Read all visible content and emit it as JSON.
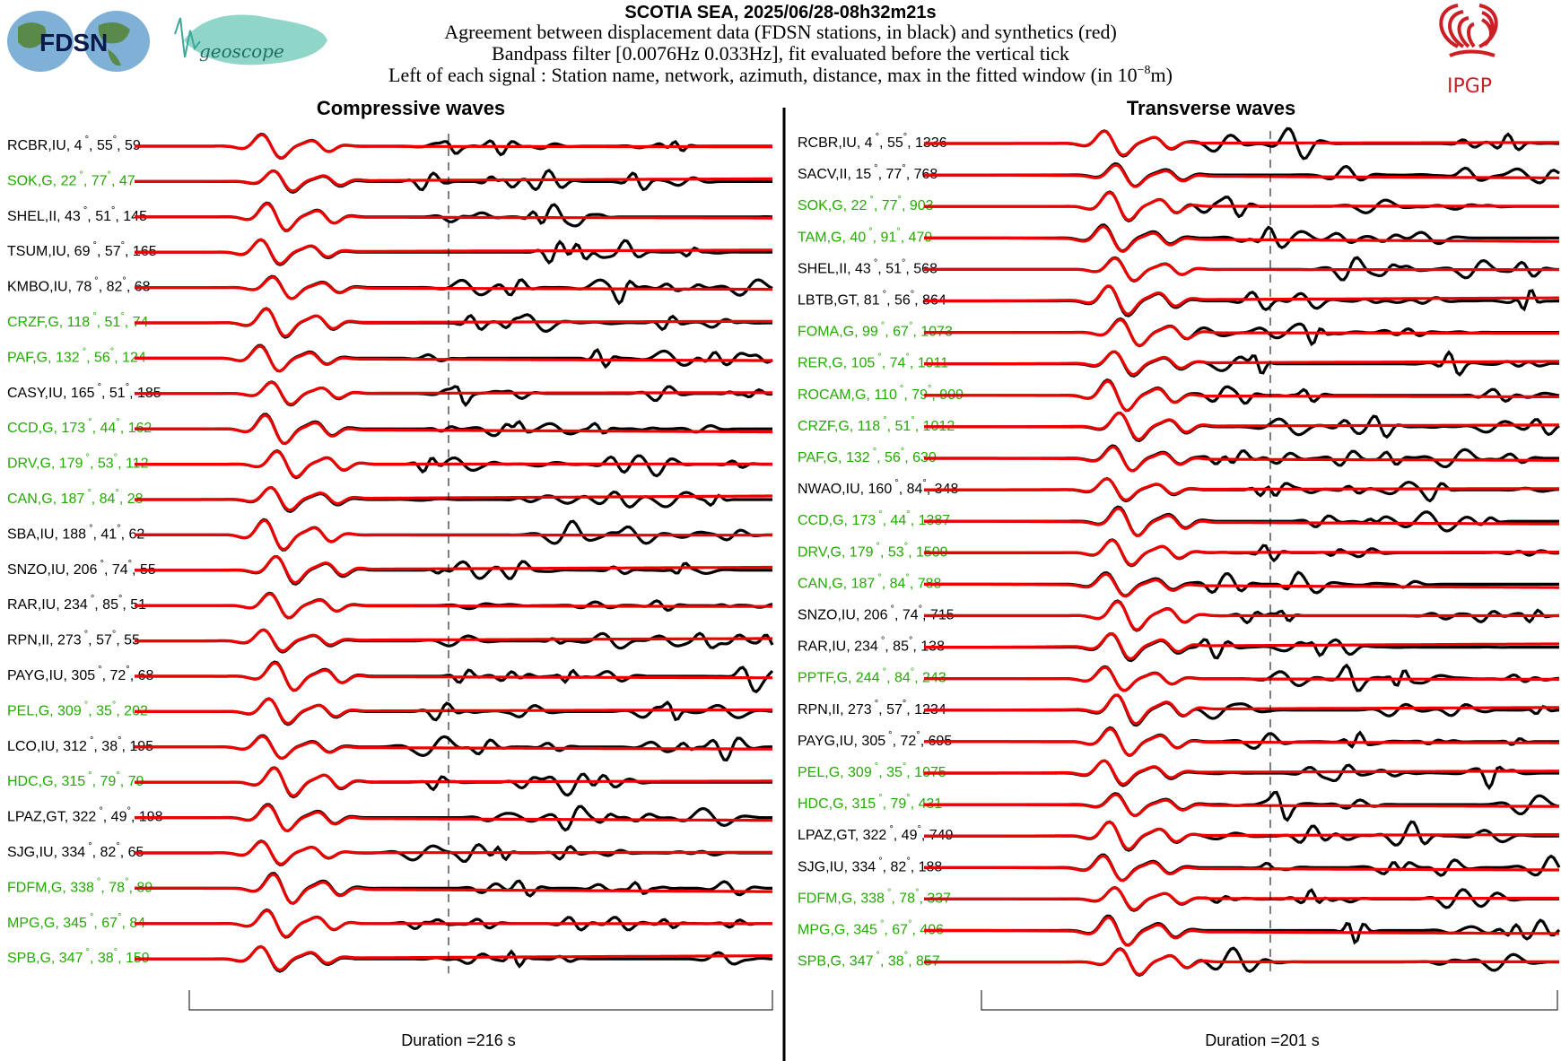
{
  "header": {
    "title": "SCOTIA SEA, 2025/06/28-08h32m21s",
    "line1": "Agreement between displacement data (FDSN stations, in black) and synthetics (red)",
    "line2": "Bandpass filter [0.0076Hz 0.033Hz], fit evaluated before the vertical tick",
    "line3_prefix": "Left of each signal : Station name, network, azimuth, distance, max in the fitted window (in 10",
    "line3_exp": "−8",
    "line3_suffix": "m)"
  },
  "logos": {
    "fdsn": "FDSN",
    "geoscope": "geoscope",
    "ipgp": "IPGP"
  },
  "colors": {
    "data": "#000000",
    "synthetic": "#ee0000",
    "geoscope_label": "#22aa00",
    "other_label": "#000000",
    "ipgp_red": "#cc1f25"
  },
  "chart_data": [
    {
      "type": "line",
      "title": "Compressive waves",
      "duration_label": "Duration =216 s",
      "series_legend": [
        {
          "name": "data",
          "color": "#000000"
        },
        {
          "name": "synthetics",
          "color": "#ee0000"
        }
      ],
      "stations": [
        {
          "label": "RCBR,IU, 4",
          "dist": "55",
          "max": "59",
          "geoscope": false
        },
        {
          "label": "SOK,G, 22",
          "dist": "77",
          "max": "47",
          "geoscope": true
        },
        {
          "label": "SHEL,II, 43",
          "dist": "51",
          "max": "145",
          "geoscope": false
        },
        {
          "label": "TSUM,IU, 69",
          "dist": "57",
          "max": "165",
          "geoscope": false
        },
        {
          "label": "KMBO,IU, 78",
          "dist": "82",
          "max": "68",
          "geoscope": false
        },
        {
          "label": "CRZF,G, 118",
          "dist": "51",
          "max": "74",
          "geoscope": true
        },
        {
          "label": "PAF,G, 132",
          "dist": "56",
          "max": "124",
          "geoscope": true
        },
        {
          "label": "CASY,IU, 165",
          "dist": "51",
          "max": "185",
          "geoscope": false
        },
        {
          "label": "CCD,G, 173",
          "dist": "44",
          "max": "162",
          "geoscope": true
        },
        {
          "label": "DRV,G, 179",
          "dist": "53",
          "max": "112",
          "geoscope": true
        },
        {
          "label": "CAN,G, 187",
          "dist": "84",
          "max": "28",
          "geoscope": true
        },
        {
          "label": "SBA,IU, 188",
          "dist": "41",
          "max": "62",
          "geoscope": false
        },
        {
          "label": "SNZO,IU, 206",
          "dist": "74",
          "max": "55",
          "geoscope": false
        },
        {
          "label": "RAR,IU, 234",
          "dist": "85",
          "max": "51",
          "geoscope": false
        },
        {
          "label": "RPN,II, 273",
          "dist": "57",
          "max": "55",
          "geoscope": false
        },
        {
          "label": "PAYG,IU, 305",
          "dist": "72",
          "max": "68",
          "geoscope": false
        },
        {
          "label": "PEL,G, 309",
          "dist": "35",
          "max": "202",
          "geoscope": true
        },
        {
          "label": "LCO,IU, 312",
          "dist": "38",
          "max": "195",
          "geoscope": false
        },
        {
          "label": "HDC,G, 315",
          "dist": "79",
          "max": "79",
          "geoscope": true
        },
        {
          "label": "LPAZ,GT, 322",
          "dist": "49",
          "max": "198",
          "geoscope": false
        },
        {
          "label": "SJG,IU, 334",
          "dist": "82",
          "max": "65",
          "geoscope": false
        },
        {
          "label": "FDFM,G, 338",
          "dist": "78",
          "max": "89",
          "geoscope": true
        },
        {
          "label": "MPG,G, 345",
          "dist": "67",
          "max": "84",
          "geoscope": true
        },
        {
          "label": "SPB,G, 347",
          "dist": "38",
          "max": "159",
          "geoscope": true
        }
      ]
    },
    {
      "type": "line",
      "title": "Transverse waves",
      "duration_label": "Duration =201 s",
      "series_legend": [
        {
          "name": "data",
          "color": "#000000"
        },
        {
          "name": "synthetics",
          "color": "#ee0000"
        }
      ],
      "stations": [
        {
          "label": "RCBR,IU, 4",
          "dist": "55",
          "max": "1336",
          "geoscope": false
        },
        {
          "label": "SACV,II, 15",
          "dist": "77",
          "max": "768",
          "geoscope": false
        },
        {
          "label": "SOK,G, 22",
          "dist": "77",
          "max": "903",
          "geoscope": true
        },
        {
          "label": "TAM,G, 40",
          "dist": "91",
          "max": "479",
          "geoscope": true
        },
        {
          "label": "SHEL,II, 43",
          "dist": "51",
          "max": "568",
          "geoscope": false
        },
        {
          "label": "LBTB,GT, 81",
          "dist": "56",
          "max": "864",
          "geoscope": false
        },
        {
          "label": "FOMA,G, 99",
          "dist": "67",
          "max": "1073",
          "geoscope": true
        },
        {
          "label": "RER,G, 105",
          "dist": "74",
          "max": "1011",
          "geoscope": true
        },
        {
          "label": "ROCAM,G, 110",
          "dist": "79",
          "max": "909",
          "geoscope": true
        },
        {
          "label": "CRZF,G, 118",
          "dist": "51",
          "max": "1012",
          "geoscope": true
        },
        {
          "label": "PAF,G, 132",
          "dist": "56",
          "max": "630",
          "geoscope": true
        },
        {
          "label": "NWAO,IU, 160",
          "dist": "84",
          "max": "348",
          "geoscope": false
        },
        {
          "label": "CCD,G, 173",
          "dist": "44",
          "max": "1387",
          "geoscope": true
        },
        {
          "label": "DRV,G, 179",
          "dist": "53",
          "max": "1509",
          "geoscope": true
        },
        {
          "label": "CAN,G, 187",
          "dist": "84",
          "max": "788",
          "geoscope": true
        },
        {
          "label": "SNZO,IU, 206",
          "dist": "74",
          "max": "715",
          "geoscope": false
        },
        {
          "label": "RAR,IU, 234",
          "dist": "85",
          "max": "138",
          "geoscope": false
        },
        {
          "label": "PPTF,G, 244",
          "dist": "84",
          "max": "243",
          "geoscope": true
        },
        {
          "label": "RPN,II, 273",
          "dist": "57",
          "max": "1234",
          "geoscope": false
        },
        {
          "label": "PAYG,IU, 305",
          "dist": "72",
          "max": "695",
          "geoscope": false
        },
        {
          "label": "PEL,G, 309",
          "dist": "35",
          "max": "1075",
          "geoscope": true
        },
        {
          "label": "HDC,G, 315",
          "dist": "79",
          "max": "431",
          "geoscope": true
        },
        {
          "label": "LPAZ,GT, 322",
          "dist": "49",
          "max": "749",
          "geoscope": false
        },
        {
          "label": "SJG,IU, 334",
          "dist": "82",
          "max": "188",
          "geoscope": false
        },
        {
          "label": "FDFM,G, 338",
          "dist": "78",
          "max": "337",
          "geoscope": true
        },
        {
          "label": "MPG,G, 345",
          "dist": "67",
          "max": "406",
          "geoscope": true
        },
        {
          "label": "SPB,G, 347",
          "dist": "38",
          "max": "857",
          "geoscope": true
        }
      ]
    }
  ]
}
